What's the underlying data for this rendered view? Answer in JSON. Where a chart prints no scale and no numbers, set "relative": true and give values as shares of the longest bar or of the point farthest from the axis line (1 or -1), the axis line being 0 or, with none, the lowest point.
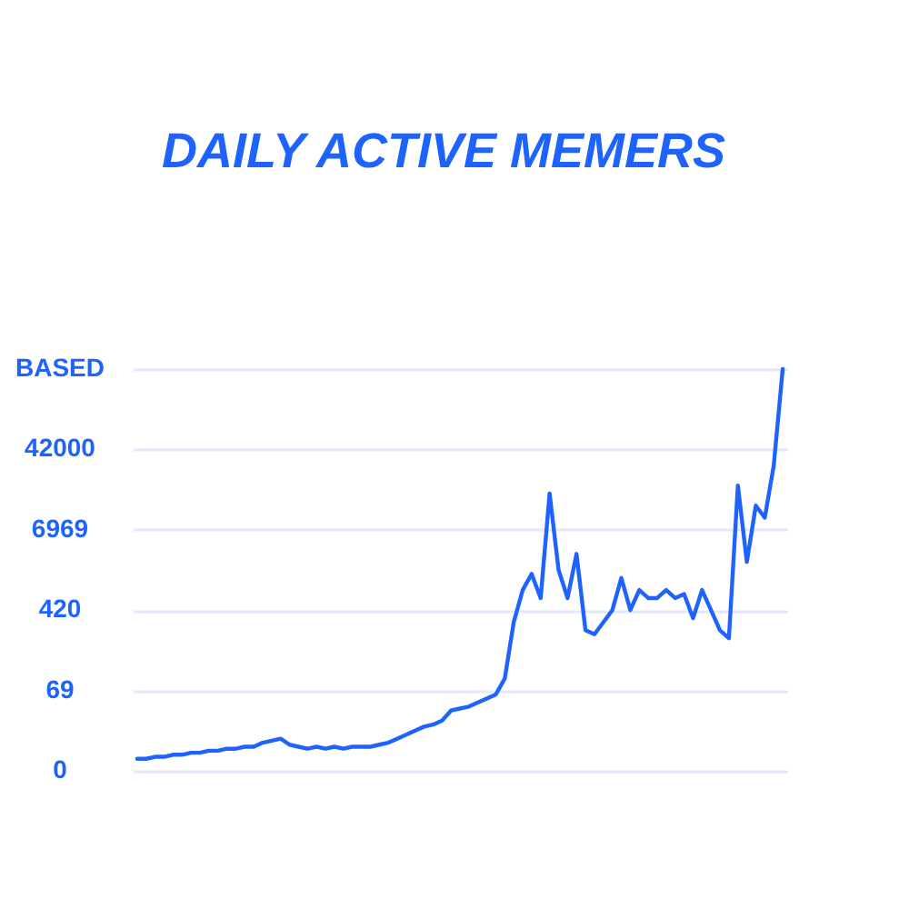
{
  "chart_data": {
    "type": "line",
    "title": "DAILY ACTIVE MEMERS",
    "relative": true,
    "categories": [
      null,
      null,
      null,
      null,
      null,
      null,
      null,
      null,
      null,
      null,
      null,
      null,
      null,
      null,
      null,
      null,
      null,
      null,
      null,
      null,
      null,
      null,
      null,
      null,
      null,
      null,
      null,
      null,
      null,
      null,
      null,
      null,
      null,
      null,
      null,
      null,
      null,
      null,
      null,
      null,
      null,
      null,
      null,
      null,
      null,
      null,
      null,
      null,
      null,
      null,
      null,
      null,
      null,
      null,
      null,
      null,
      null,
      null,
      null,
      null,
      null,
      null,
      null,
      null,
      null,
      null,
      null,
      null,
      null,
      null,
      null,
      null,
      null
    ],
    "series": [
      {
        "color": "#1f63ff",
        "values": [
          0.03,
          0.03,
          0.035,
          0.035,
          0.04,
          0.04,
          0.045,
          0.045,
          0.05,
          0.05,
          0.055,
          0.055,
          0.06,
          0.06,
          0.07,
          0.075,
          0.08,
          0.065,
          0.06,
          0.055,
          0.06,
          0.055,
          0.06,
          0.055,
          0.06,
          0.06,
          0.06,
          0.065,
          0.07,
          0.08,
          0.09,
          0.1,
          0.11,
          0.115,
          0.125,
          0.15,
          0.155,
          0.16,
          0.17,
          0.18,
          0.19,
          0.23,
          0.37,
          0.45,
          0.49,
          0.43,
          0.69,
          0.5,
          0.43,
          0.54,
          0.35,
          0.34,
          0.37,
          0.4,
          0.48,
          0.4,
          0.45,
          0.43,
          0.43,
          0.45,
          0.43,
          0.44,
          0.38,
          0.45,
          0.4,
          0.35,
          0.33,
          0.71,
          0.52,
          0.66,
          0.63,
          0.76,
          1
        ]
      }
    ],
    "annotations": [
      "BASED",
      "42000",
      "6969",
      "420",
      "69",
      "0"
    ],
    "grid": "y",
    "marker": "none",
    "line_style": "solid"
  }
}
